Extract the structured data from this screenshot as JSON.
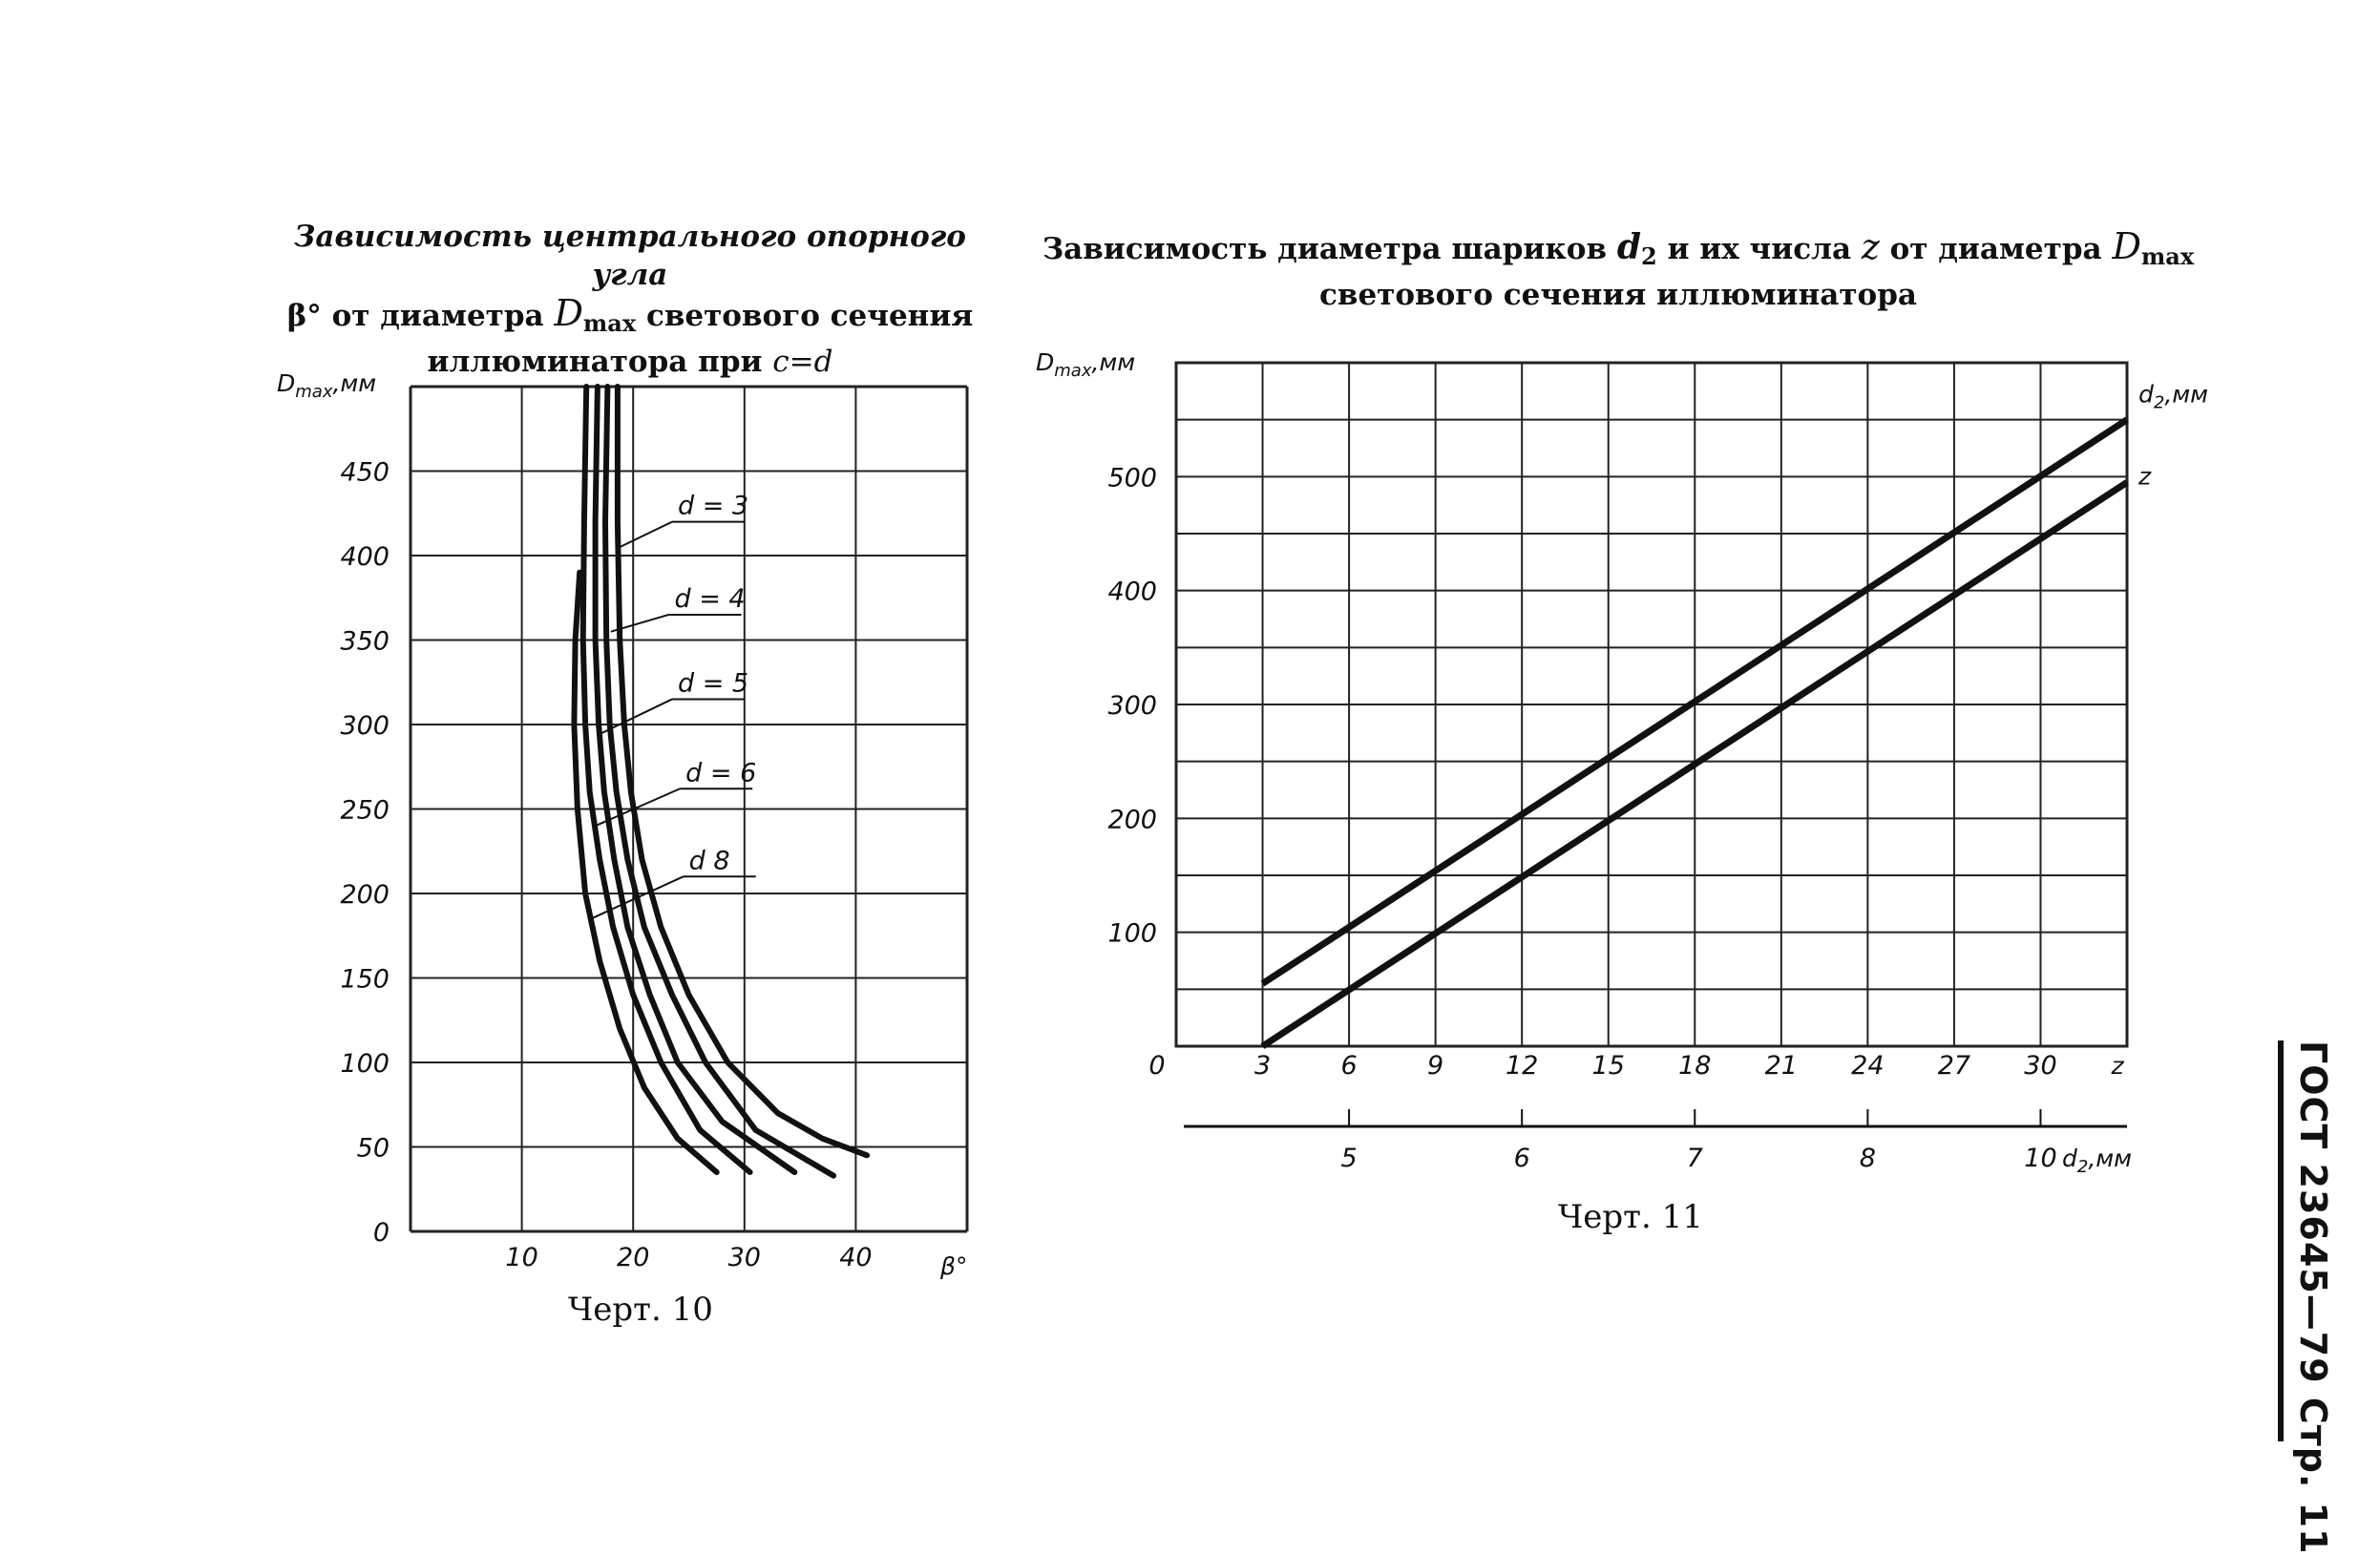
{
  "page": {
    "side_label": "ГОСТ 23645—79 Стр. 11"
  },
  "chart_data": [
    {
      "type": "line",
      "title_lines": [
        "Зависимость центрального опорного угла",
        "β° от диаметра D",
        "светового сечения",
        "иллюминатора при c=d"
      ],
      "title_parts": {
        "line1": "Зависимость центрального опорного угла",
        "line2_a": "β° от диаметра ",
        "line2_var": "D",
        "line2_sub": "max",
        "line2_b": " светового сечения",
        "line3_a": "иллюминатора при ",
        "line3_var": "c=d"
      },
      "caption": "Черт. 10",
      "xlabel": "β°",
      "ylabel": "D",
      "ylabel_sub": "max",
      "ylabel_unit": ",мм",
      "x_ticks": [
        "10",
        "20",
        "30",
        "40"
      ],
      "x_tick_values": [
        10,
        20,
        30,
        40
      ],
      "y_ticks": [
        "0",
        "50",
        "100",
        "150",
        "200",
        "250",
        "300",
        "350",
        "400",
        "450"
      ],
      "y_tick_values": [
        0,
        50,
        100,
        150,
        200,
        250,
        300,
        350,
        400,
        450
      ],
      "xlim": [
        0,
        50
      ],
      "ylim": [
        0,
        500
      ],
      "grid": true,
      "series": [
        {
          "name": "d = 3",
          "label_at": [
            23.5,
            420
          ],
          "leader_to": [
            18.8,
            405
          ],
          "points": [
            [
              18.6,
              500
            ],
            [
              18.6,
              420
            ],
            [
              18.8,
              350
            ],
            [
              19.2,
              300
            ],
            [
              19.8,
              260
            ],
            [
              20.8,
              220
            ],
            [
              22.5,
              180
            ],
            [
              25,
              140
            ],
            [
              28.5,
              100
            ],
            [
              33,
              70
            ],
            [
              37,
              55
            ],
            [
              41,
              45
            ]
          ]
        },
        {
          "name": "d = 4",
          "label_at": [
            23.2,
            365
          ],
          "leader_to": [
            18,
            355
          ],
          "points": [
            [
              17.7,
              500
            ],
            [
              17.5,
              420
            ],
            [
              17.6,
              350
            ],
            [
              17.9,
              300
            ],
            [
              18.5,
              260
            ],
            [
              19.5,
              220
            ],
            [
              21,
              180
            ],
            [
              23.5,
              140
            ],
            [
              26.5,
              100
            ],
            [
              31,
              60
            ],
            [
              38,
              33
            ]
          ]
        },
        {
          "name": "d = 5",
          "label_at": [
            23.5,
            315
          ],
          "leader_to": [
            17.2,
            295
          ],
          "points": [
            [
              16.8,
              500
            ],
            [
              16.6,
              420
            ],
            [
              16.6,
              350
            ],
            [
              16.9,
              300
            ],
            [
              17.4,
              260
            ],
            [
              18.3,
              220
            ],
            [
              19.5,
              180
            ],
            [
              21.5,
              140
            ],
            [
              24,
              100
            ],
            [
              28,
              65
            ],
            [
              34.5,
              35
            ]
          ]
        },
        {
          "name": "d = 6",
          "label_at": [
            24.2,
            262
          ],
          "leader_to": [
            16.6,
            240
          ],
          "points": [
            [
              15.8,
              500
            ],
            [
              15.6,
              420
            ],
            [
              15.5,
              350
            ],
            [
              15.7,
              300
            ],
            [
              16.1,
              260
            ],
            [
              17,
              220
            ],
            [
              18.2,
              180
            ],
            [
              20,
              140
            ],
            [
              22.5,
              100
            ],
            [
              26,
              60
            ],
            [
              30.5,
              35
            ]
          ]
        },
        {
          "name": "d 8",
          "label_at": [
            24.5,
            210
          ],
          "leader_to": [
            16.2,
            185
          ],
          "points": [
            [
              15.2,
              390
            ],
            [
              14.8,
              350
            ],
            [
              14.7,
              300
            ],
            [
              15,
              250
            ],
            [
              15.7,
              200
            ],
            [
              17,
              160
            ],
            [
              18.8,
              120
            ],
            [
              21,
              85
            ],
            [
              24,
              55
            ],
            [
              27.5,
              35
            ]
          ]
        }
      ]
    },
    {
      "type": "line",
      "title_parts": {
        "line1_a": "Зависимость диаметра шариков ",
        "line1_var": "d",
        "line1_sub": "2",
        "line1_b": " и их числа ",
        "line1_z": "z",
        "line1_c": " от диаметра ",
        "line1_var2": "D",
        "line1_sub2": "max",
        "line2": "светового сечения иллюминатора"
      },
      "caption": "Черт. 11",
      "ylabel": "D",
      "ylabel_sub": "max",
      "ylabel_unit": ",мм",
      "x_label_z": "z",
      "x_label_d": "d",
      "x_label_d_sub": "2",
      "x_label_d_unit": ",мм",
      "x_ticks_z": [
        "0",
        "3",
        "6",
        "9",
        "12",
        "15",
        "18",
        "21",
        "24",
        "27",
        "30"
      ],
      "x_tick_values_z": [
        0,
        3,
        6,
        9,
        12,
        15,
        18,
        21,
        24,
        27,
        30
      ],
      "x_ticks_d": [
        "5",
        "6",
        "7",
        "8",
        "10"
      ],
      "x_tick_values_d_at_z": [
        6,
        12,
        18,
        24,
        30
      ],
      "y_ticks": [
        "100",
        "200",
        "300",
        "400",
        "500"
      ],
      "y_tick_values": [
        100,
        200,
        300,
        400,
        500
      ],
      "xlim": [
        0,
        33
      ],
      "ylim": [
        0,
        600
      ],
      "grid": true,
      "series": [
        {
          "name": "d₂,мм",
          "label_name_var": "d",
          "label_name_sub": "2",
          "label_name_unit": ",мм",
          "points": [
            [
              3,
              55
            ],
            [
              33,
              550
            ]
          ]
        },
        {
          "name": "z",
          "points": [
            [
              3,
              0
            ],
            [
              33,
              495
            ]
          ]
        }
      ]
    }
  ]
}
